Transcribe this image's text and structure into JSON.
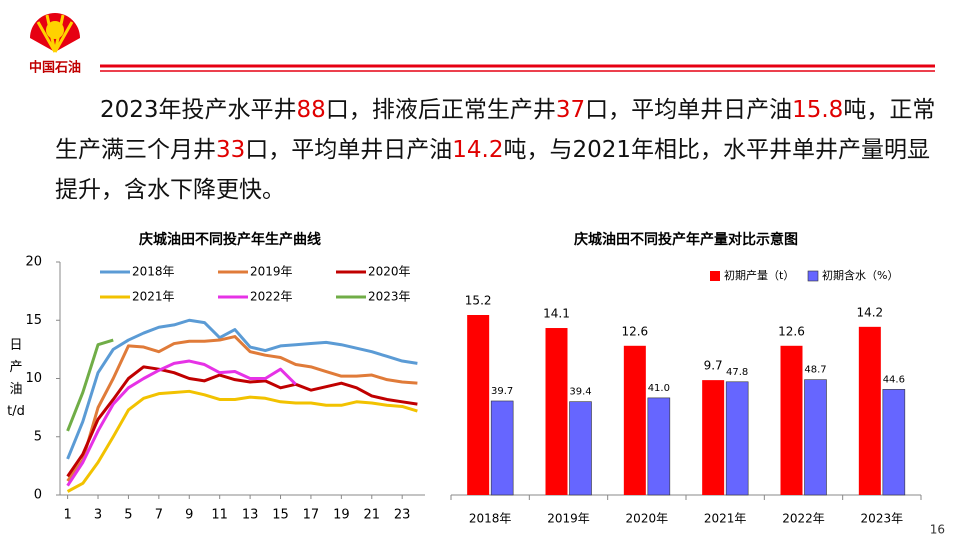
{
  "header": {
    "logo_text": "中国石油",
    "page_number": "16"
  },
  "intro": {
    "highlight_color": "#e00000",
    "segments": [
      {
        "text": "2023年投产水平井",
        "highlight": false
      },
      {
        "text": "88",
        "highlight": true
      },
      {
        "text": "口，排液后正常生产井",
        "highlight": false
      },
      {
        "text": "37",
        "highlight": true
      },
      {
        "text": "口，平均单井日产油",
        "highlight": false
      },
      {
        "text": "15.8",
        "highlight": true
      },
      {
        "text": "吨，正常生产满三个月井",
        "highlight": false
      },
      {
        "text": "33",
        "highlight": true
      },
      {
        "text": "口，平均单井日产油",
        "highlight": false
      },
      {
        "text": "14.2",
        "highlight": true
      },
      {
        "text": "吨，与2021年相比，水平井单井产量明显提升，含水下降更快。",
        "highlight": false
      }
    ]
  },
  "chart_data": [
    {
      "type": "line",
      "title": "庆城油田不同投产年生产曲线",
      "y_label": "日产油t/d",
      "x": [
        1,
        2,
        3,
        4,
        5,
        6,
        7,
        8,
        9,
        10,
        11,
        12,
        13,
        14,
        15,
        16,
        17,
        18,
        19,
        20,
        21,
        22,
        23,
        24
      ],
      "xlim": [
        0.5,
        24.5
      ],
      "xticks": [
        1,
        3,
        5,
        7,
        9,
        11,
        13,
        15,
        17,
        19,
        21,
        23
      ],
      "ylim": [
        0,
        20
      ],
      "yticks": [
        0,
        5,
        10,
        15,
        20
      ],
      "grid": false,
      "series": [
        {
          "name": "2018年",
          "color": "#5b9bd5",
          "values": [
            3.1,
            6.3,
            10.5,
            12.5,
            13.3,
            13.9,
            14.4,
            14.6,
            15.0,
            14.8,
            13.5,
            14.2,
            12.7,
            12.4,
            12.8,
            12.9,
            13.0,
            13.1,
            12.9,
            12.6,
            12.3,
            11.9,
            11.5,
            11.3
          ]
        },
        {
          "name": "2019年",
          "color": "#e07b39",
          "values": [
            1.2,
            3.0,
            7.5,
            10.0,
            12.8,
            12.7,
            12.3,
            13.0,
            13.2,
            13.2,
            13.3,
            13.6,
            12.3,
            12.0,
            11.8,
            11.2,
            11.0,
            10.6,
            10.2,
            10.2,
            10.3,
            9.9,
            9.7,
            9.6
          ]
        },
        {
          "name": "2020年",
          "color": "#c00000",
          "values": [
            1.6,
            3.5,
            6.5,
            8.2,
            10.0,
            11.0,
            10.8,
            10.5,
            10.0,
            9.8,
            10.3,
            9.9,
            9.7,
            9.8,
            9.2,
            9.5,
            9.0,
            9.3,
            9.6,
            9.2,
            8.5,
            8.2,
            8.0,
            7.8
          ]
        },
        {
          "name": "2021年",
          "color": "#f2c200",
          "values": [
            0.3,
            1.0,
            2.8,
            5.0,
            7.3,
            8.3,
            8.7,
            8.8,
            8.9,
            8.6,
            8.2,
            8.2,
            8.4,
            8.3,
            8.0,
            7.9,
            7.9,
            7.7,
            7.7,
            8.0,
            7.9,
            7.7,
            7.6,
            7.2
          ]
        },
        {
          "name": "2022年",
          "color": "#e632e6",
          "values": [
            0.8,
            2.8,
            5.5,
            7.8,
            9.2,
            10.0,
            10.7,
            11.3,
            11.5,
            11.2,
            10.5,
            10.6,
            10.0,
            10.0,
            10.8,
            9.5,
            null,
            null,
            null,
            null,
            null,
            null,
            null,
            null
          ]
        },
        {
          "name": "2023年",
          "color": "#70ad47",
          "values": [
            5.5,
            8.8,
            12.9,
            13.3,
            null,
            null,
            null,
            null,
            null,
            null,
            null,
            null,
            null,
            null,
            null,
            null,
            null,
            null,
            null,
            null,
            null,
            null,
            null,
            null
          ]
        }
      ]
    },
    {
      "type": "bar",
      "title": "庆城油田不同投产年产量对比示意图",
      "categories": [
        "2018年",
        "2019年",
        "2020年",
        "2021年",
        "2022年",
        "2023年"
      ],
      "ylim": [
        0,
        19
      ],
      "y2lim": [
        0,
        95
      ],
      "series": [
        {
          "name": "初期产量（t）",
          "color": "#ff0000",
          "values": [
            15.2,
            14.1,
            12.6,
            9.7,
            12.6,
            14.2
          ]
        },
        {
          "name": "初期含水（%）",
          "color": "#6666ff",
          "axis": "y2",
          "values": [
            39.7,
            39.4,
            41.0,
            47.8,
            48.7,
            44.6
          ],
          "value_labels": [
            "39.7",
            "39.4",
            "41.0",
            "47.8",
            "48.7",
            "44.6"
          ]
        }
      ]
    }
  ]
}
